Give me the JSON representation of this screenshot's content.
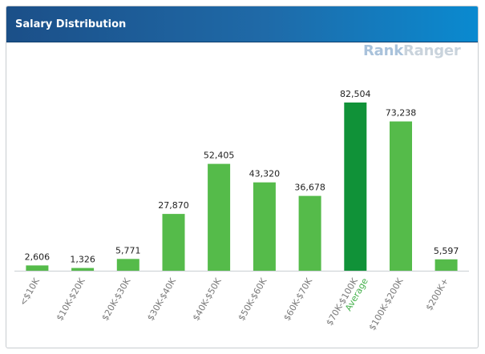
{
  "header": {
    "title": "Salary Distribution"
  },
  "logo": {
    "part1": "Rank",
    "part2": "Ranger"
  },
  "colors": {
    "bar": "#55bb4a",
    "highlight": "#109238",
    "header_start": "#1b4f88",
    "header_end": "#0a8ad0"
  },
  "chart_data": {
    "type": "bar",
    "title": "Salary Distribution",
    "categories": [
      "<$10K",
      "$10K-$20K",
      "$20K-$30K",
      "$30K-$40K",
      "$40K-$50K",
      "$50K-$60K",
      "$60K-$70K",
      "$70K-$100K",
      "$100K-$200K",
      "$200K+"
    ],
    "values": [
      2606,
      1326,
      5771,
      27870,
      52405,
      43320,
      36678,
      82504,
      73238,
      5597
    ],
    "value_labels": [
      "2,606",
      "1,326",
      "5,771",
      "27,870",
      "52,405",
      "43,320",
      "36,678",
      "82,504",
      "73,238",
      "5,597"
    ],
    "highlight_index": 7,
    "highlight_note": "Average",
    "xlabel": "",
    "ylabel": "",
    "ylim": [
      0,
      82504
    ],
    "grid": false,
    "legend": "none"
  }
}
